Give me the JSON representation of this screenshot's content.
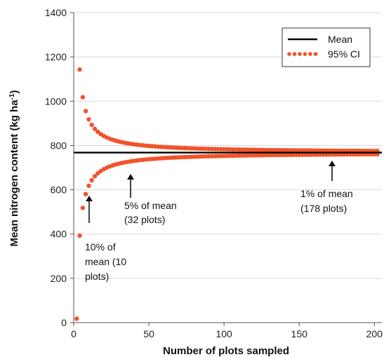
{
  "chart_data": {
    "type": "scatter",
    "xlabel": "Number of plots sampled",
    "ylabel": "Mean nitrogen content (kg ha",
    "ylabel_sup": "-1",
    "ylabel_close": ")",
    "xlim": [
      0,
      205
    ],
    "ylim": [
      0,
      1400
    ],
    "xticks": [
      0,
      50,
      100,
      150,
      200
    ],
    "yticks": [
      0,
      200,
      400,
      600,
      800,
      1000,
      1200,
      1400
    ],
    "mean": 768,
    "ci_halfwidth_at_n1": 1500,
    "ci_x": [
      2,
      4,
      6,
      8,
      10,
      12,
      14,
      16,
      18,
      20,
      22,
      24,
      26,
      28,
      30,
      32,
      34,
      36,
      38,
      40,
      42,
      44,
      46,
      48,
      50,
      52,
      54,
      56,
      58,
      60,
      62,
      64,
      66,
      68,
      70,
      72,
      74,
      76,
      78,
      80,
      82,
      84,
      86,
      88,
      90,
      92,
      94,
      96,
      98,
      100,
      102,
      104,
      106,
      108,
      110,
      112,
      114,
      116,
      118,
      120,
      122,
      124,
      126,
      128,
      130,
      132,
      134,
      136,
      138,
      140,
      142,
      144,
      146,
      148,
      150,
      152,
      154,
      156,
      158,
      160,
      162,
      164,
      166,
      168,
      170,
      172,
      174,
      176,
      178,
      180,
      182,
      184,
      186,
      188,
      190,
      192,
      194,
      196,
      198,
      200,
      202
    ],
    "series": [
      {
        "name": "Mean",
        "color": "#000000"
      },
      {
        "name": "95% CI",
        "color": "#f0542a"
      }
    ],
    "legend_position": "top-right",
    "annotations": [
      {
        "lines": [
          "10% of",
          "mean (10",
          "plots)"
        ],
        "arrow_x": 10
      },
      {
        "lines": [
          "5% of mean",
          "(32 plots)"
        ],
        "arrow_x": 38
      },
      {
        "lines": [
          "1% of mean",
          "(178 plots)"
        ],
        "arrow_x": 173
      }
    ]
  }
}
